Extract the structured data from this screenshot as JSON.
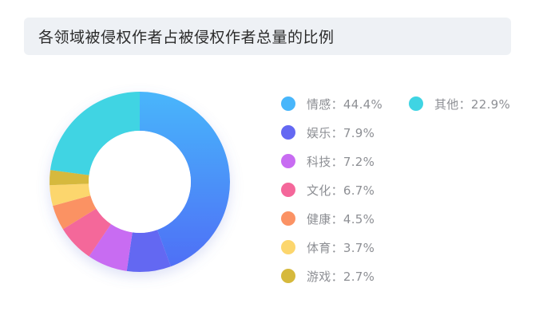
{
  "chart_data": {
    "type": "pie",
    "title": "各领域被侵权作者占被侵权作者总量的比例",
    "legend_position": "right",
    "slices": [
      {
        "name": "情感",
        "value": 44.4,
        "label": "情感：44.4%",
        "color": "#4f8dfa",
        "color_light": "#48b6fb"
      },
      {
        "name": "娱乐",
        "value": 7.9,
        "label": "娱乐：7.9%",
        "color": "#6468f2",
        "color_light": "#6468f2"
      },
      {
        "name": "科技",
        "value": 7.2,
        "label": "科技：7.2%",
        "color": "#c86cf2",
        "color_light": "#c86cf2"
      },
      {
        "name": "文化",
        "value": 6.7,
        "label": "文化：6.7%",
        "color": "#f4679a",
        "color_light": "#f4679a"
      },
      {
        "name": "健康",
        "value": 4.5,
        "label": "健康：4.5%",
        "color": "#fb9264",
        "color_light": "#fb9264"
      },
      {
        "name": "体育",
        "value": 3.7,
        "label": "体育：3.7%",
        "color": "#fcd66d",
        "color_light": "#fcd66d"
      },
      {
        "name": "游戏",
        "value": 2.7,
        "label": "游戏：2.7%",
        "color": "#d6b93c",
        "color_light": "#d6b93c"
      },
      {
        "name": "其他",
        "value": 22.9,
        "label": "其他：22.9%",
        "color": "#3fd4e3",
        "color_light": "#3fd4e3"
      }
    ]
  }
}
